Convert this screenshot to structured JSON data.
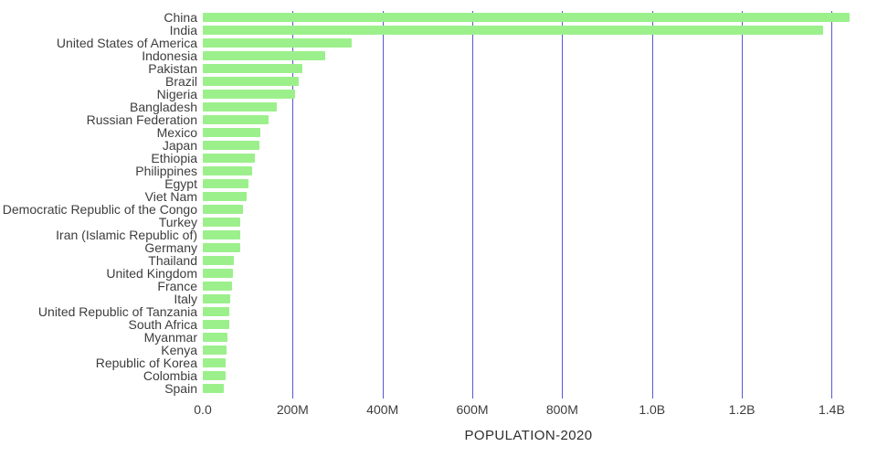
{
  "page": {
    "background": "#ffffff"
  },
  "chart_data": {
    "type": "bar",
    "orientation": "horizontal",
    "title": "",
    "xlabel": "POPULATION-2020",
    "value_unit": "millions",
    "xlim_millions": [
      0,
      1450
    ],
    "grid": true,
    "legend": "none",
    "bar_color": "#9cf08c",
    "gridline_color": "#5757d9",
    "text_color": "#3d3d3d",
    "categories": [
      "China",
      "India",
      "United States of America",
      "Indonesia",
      "Pakistan",
      "Brazil",
      "Nigeria",
      "Bangladesh",
      "Russian Federation",
      "Mexico",
      "Japan",
      "Ethiopia",
      "Philippines",
      "Egypt",
      "Viet Nam",
      "Democratic Republic of the Congo",
      "Turkey",
      "Iran (Islamic Republic of)",
      "Germany",
      "Thailand",
      "United Kingdom",
      "France",
      "Italy",
      "United Republic of Tanzania",
      "South Africa",
      "Myanmar",
      "Kenya",
      "Republic of Korea",
      "Colombia",
      "Spain"
    ],
    "values": [
      1439.3,
      1380.0,
      331.0,
      273.5,
      220.9,
      212.6,
      206.1,
      164.7,
      145.9,
      128.9,
      126.5,
      115.0,
      109.6,
      102.3,
      97.3,
      89.6,
      84.3,
      84.0,
      83.8,
      69.8,
      67.9,
      65.3,
      60.5,
      59.7,
      59.3,
      54.4,
      53.8,
      51.3,
      50.9,
      46.8
    ],
    "xticks": [
      {
        "value": 0,
        "label": "0.0"
      },
      {
        "value": 200,
        "label": "200M"
      },
      {
        "value": 400,
        "label": "400M"
      },
      {
        "value": 600,
        "label": "600M"
      },
      {
        "value": 800,
        "label": "800M"
      },
      {
        "value": 1000,
        "label": "1.0B"
      },
      {
        "value": 1200,
        "label": "1.2B"
      },
      {
        "value": 1400,
        "label": "1.4B"
      }
    ]
  }
}
